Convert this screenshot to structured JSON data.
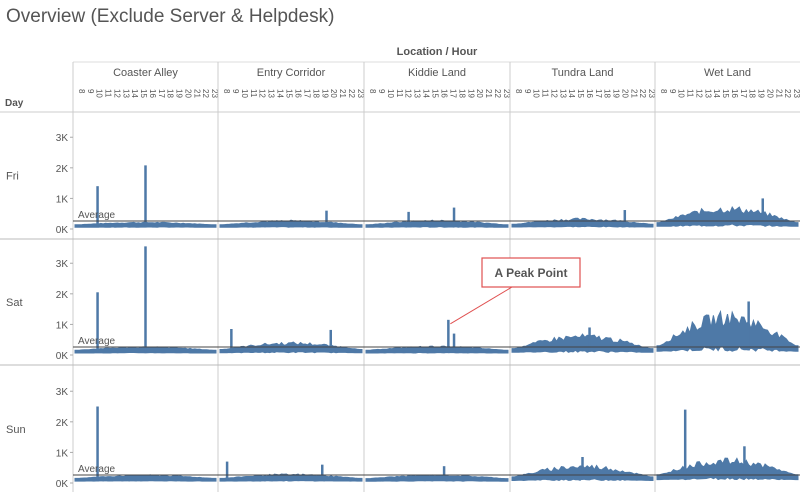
{
  "title": "Overview (Exclude Server & Helpdesk)",
  "chart_data": {
    "type": "area",
    "column_header": "Location / Hour",
    "row_header": "Day",
    "locations": [
      "Coaster Alley",
      "Entry Corridor",
      "Kiddie Land",
      "Tundra Land",
      "Wet Land"
    ],
    "hours": [
      "8",
      "9",
      "10",
      "11",
      "12",
      "13",
      "14",
      "15",
      "16",
      "17",
      "18",
      "19",
      "20",
      "21",
      "22",
      "23"
    ],
    "days": [
      "Fri",
      "Sat",
      "Sun"
    ],
    "y_ticks": [
      "0K",
      "1K",
      "2K",
      "3K"
    ],
    "ylim": [
      0,
      3800
    ],
    "average_label": "Average",
    "average_value": 260,
    "series_color": "#4e79a7",
    "panels": [
      {
        "day": "Fri",
        "location": "Coaster Alley",
        "base": 230,
        "amp": 90,
        "spikes": [
          {
            "x": 0.16,
            "y": 1400
          },
          {
            "x": 0.5,
            "y": 2080
          }
        ]
      },
      {
        "day": "Fri",
        "location": "Entry Corridor",
        "base": 230,
        "amp": 150,
        "spikes": [
          {
            "x": 0.75,
            "y": 600
          }
        ]
      },
      {
        "day": "Fri",
        "location": "Kiddie Land",
        "base": 230,
        "amp": 160,
        "spikes": [
          {
            "x": 0.62,
            "y": 700
          },
          {
            "x": 0.3,
            "y": 560
          }
        ]
      },
      {
        "day": "Fri",
        "location": "Tundra Land",
        "base": 260,
        "amp": 200,
        "spikes": [
          {
            "x": 0.8,
            "y": 620
          }
        ]
      },
      {
        "day": "Fri",
        "location": "Wet Land",
        "base": 350,
        "amp": 550,
        "spikes": [
          {
            "x": 0.75,
            "y": 1000
          }
        ]
      },
      {
        "day": "Sat",
        "location": "Coaster Alley",
        "base": 260,
        "amp": 120,
        "spikes": [
          {
            "x": 0.16,
            "y": 2050
          },
          {
            "x": 0.5,
            "y": 3550
          }
        ]
      },
      {
        "day": "Sat",
        "location": "Entry Corridor",
        "base": 300,
        "amp": 250,
        "spikes": [
          {
            "x": 0.08,
            "y": 850
          },
          {
            "x": 0.78,
            "y": 820
          }
        ]
      },
      {
        "day": "Sat",
        "location": "Kiddie Land",
        "base": 260,
        "amp": 140,
        "spikes": [
          {
            "x": 0.58,
            "y": 1150
          },
          {
            "x": 0.62,
            "y": 700
          }
        ]
      },
      {
        "day": "Sat",
        "location": "Tundra Land",
        "base": 350,
        "amp": 480,
        "spikes": [
          {
            "x": 0.55,
            "y": 900
          }
        ]
      },
      {
        "day": "Sat",
        "location": "Wet Land",
        "base": 500,
        "amp": 1150,
        "spikes": [
          {
            "x": 0.65,
            "y": 1750
          }
        ]
      },
      {
        "day": "Sun",
        "location": "Coaster Alley",
        "base": 250,
        "amp": 120,
        "spikes": [
          {
            "x": 0.16,
            "y": 2500
          }
        ]
      },
      {
        "day": "Sun",
        "location": "Entry Corridor",
        "base": 250,
        "amp": 150,
        "spikes": [
          {
            "x": 0.05,
            "y": 700
          },
          {
            "x": 0.72,
            "y": 600
          }
        ]
      },
      {
        "day": "Sun",
        "location": "Kiddie Land",
        "base": 240,
        "amp": 130,
        "spikes": [
          {
            "x": 0.55,
            "y": 550
          }
        ]
      },
      {
        "day": "Sun",
        "location": "Tundra Land",
        "base": 330,
        "amp": 420,
        "spikes": [
          {
            "x": 0.5,
            "y": 850
          }
        ]
      },
      {
        "day": "Sun",
        "location": "Wet Land",
        "base": 450,
        "amp": 550,
        "spikes": [
          {
            "x": 0.2,
            "y": 2400
          },
          {
            "x": 0.62,
            "y": 1200
          }
        ]
      }
    ],
    "annotation": {
      "text": "A Peak Point",
      "day": "Sat",
      "location": "Kiddie Land",
      "x": 0.58,
      "y": 1150
    },
    "grid": false,
    "legend": "none"
  }
}
